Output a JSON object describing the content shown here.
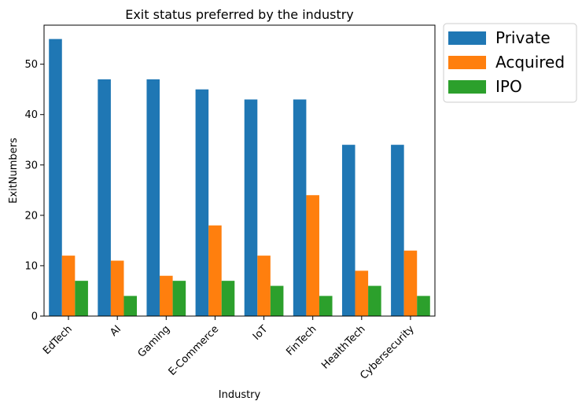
{
  "chart_data": {
    "type": "bar",
    "title": "Exit status preferred by the industry",
    "xlabel": "Industry",
    "ylabel": "ExitNumbers",
    "categories": [
      "EdTech",
      "AI",
      "Gaming",
      "E-Commerce",
      "IoT",
      "FinTech",
      "HealthTech",
      "Cybersecurity"
    ],
    "series": [
      {
        "name": "Private",
        "color": "#1f77b4",
        "values": [
          55,
          47,
          47,
          45,
          43,
          43,
          34,
          34
        ]
      },
      {
        "name": "Acquired",
        "color": "#ff7f0e",
        "values": [
          12,
          11,
          8,
          18,
          12,
          24,
          9,
          13
        ]
      },
      {
        "name": "IPO",
        "color": "#2ca02c",
        "values": [
          7,
          4,
          7,
          7,
          6,
          4,
          6,
          4
        ]
      }
    ],
    "ylim": [
      0,
      57.75
    ],
    "yticks": [
      0,
      10,
      20,
      30,
      40,
      50
    ],
    "grid": false,
    "legend_position": "outside-top-right"
  }
}
